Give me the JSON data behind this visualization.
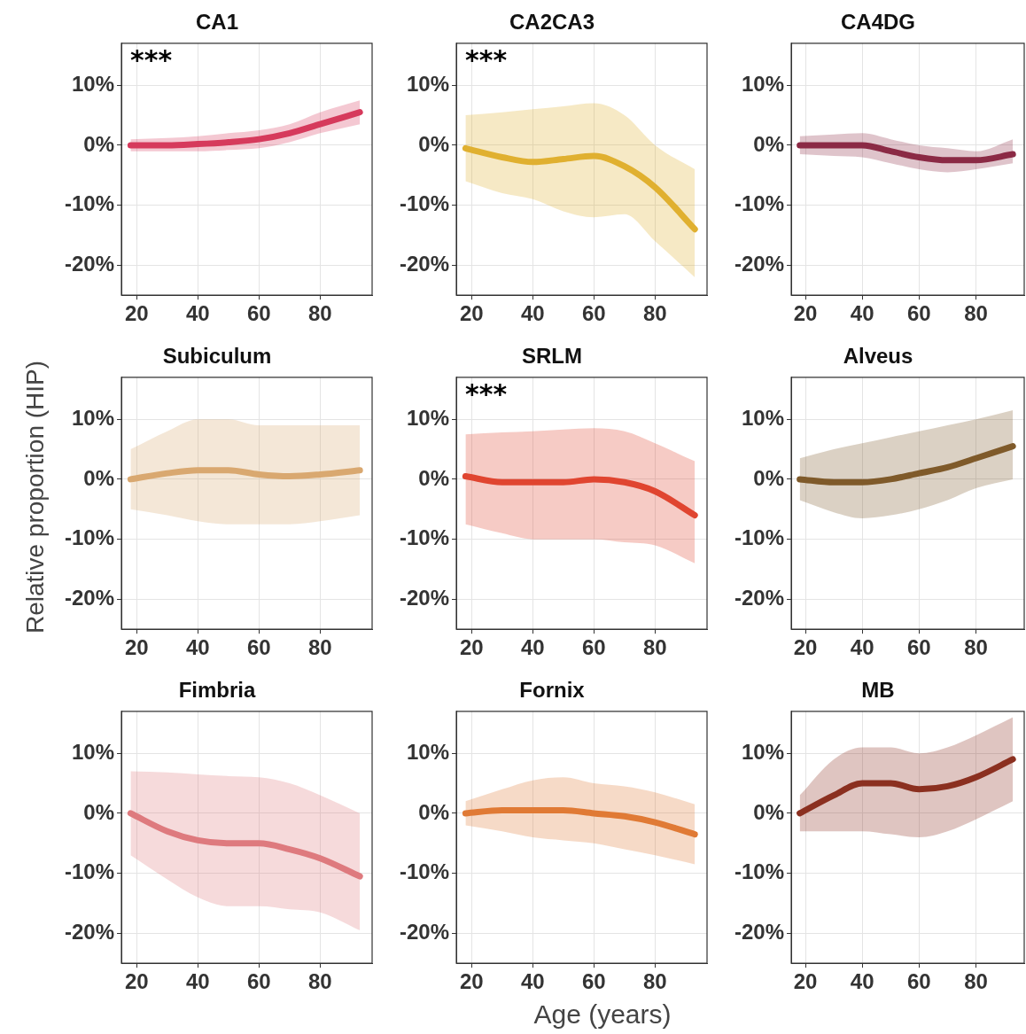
{
  "chart_data": [
    {
      "type": "line",
      "title": "CA1",
      "annotations": [
        "***"
      ],
      "x": [
        18,
        30,
        40,
        50,
        60,
        70,
        80,
        93
      ],
      "xlim": [
        15,
        97
      ],
      "xticks": [
        20,
        40,
        60,
        80
      ],
      "ylim": [
        -25,
        17
      ],
      "yticks": [
        {
          "value": 10,
          "label": "10%"
        },
        {
          "value": 0,
          "label": "0%"
        },
        {
          "value": -10,
          "label": "-10%"
        },
        {
          "value": -20,
          "label": "-20%"
        }
      ],
      "grid": true,
      "legend": false,
      "marker": "none",
      "line_style": "solid",
      "series": [
        {
          "color": "#d63a5c",
          "values": [
            0,
            0,
            0.2,
            0.5,
            1,
            2,
            3.5,
            5.5
          ],
          "lower": [
            -1,
            -1,
            -1,
            -0.8,
            -0.5,
            0.5,
            2,
            3.5
          ],
          "upper": [
            1,
            1.2,
            1.5,
            2,
            2.5,
            3.5,
            5.5,
            7.5
          ]
        }
      ]
    },
    {
      "type": "line",
      "title": "CA2CA3",
      "annotations": [
        "***"
      ],
      "x": [
        18,
        30,
        40,
        50,
        60,
        70,
        80,
        93
      ],
      "xlim": [
        15,
        97
      ],
      "xticks": [
        20,
        40,
        60,
        80
      ],
      "ylim": [
        -25,
        17
      ],
      "yticks": [
        {
          "value": 10,
          "label": "10%"
        },
        {
          "value": 0,
          "label": "0%"
        },
        {
          "value": -10,
          "label": "-10%"
        },
        {
          "value": -20,
          "label": "-20%"
        }
      ],
      "grid": true,
      "legend": false,
      "marker": "none",
      "line_style": "solid",
      "series": [
        {
          "color": "#e0b030",
          "values": [
            -0.5,
            -2,
            -2.8,
            -2.3,
            -1.8,
            -3.5,
            -7,
            -14
          ],
          "lower": [
            -6,
            -8,
            -9,
            -11,
            -12,
            -11.5,
            -16,
            -22
          ],
          "upper": [
            5,
            5.5,
            6,
            6.5,
            7,
            5,
            0,
            -4
          ]
        }
      ]
    },
    {
      "type": "line",
      "title": "CA4DG",
      "x": [
        18,
        30,
        40,
        50,
        60,
        70,
        80,
        93
      ],
      "xlim": [
        15,
        97
      ],
      "xticks": [
        20,
        40,
        60,
        80
      ],
      "ylim": [
        -25,
        17
      ],
      "yticks": [
        {
          "value": 10,
          "label": "10%"
        },
        {
          "value": 0,
          "label": "0%"
        },
        {
          "value": -10,
          "label": "-10%"
        },
        {
          "value": -20,
          "label": "-20%"
        }
      ],
      "grid": true,
      "legend": false,
      "marker": "none",
      "line_style": "solid",
      "series": [
        {
          "color": "#8b2a45",
          "values": [
            0,
            0,
            0,
            -1,
            -2,
            -2.5,
            -2.5,
            -1.5
          ],
          "lower": [
            -1.5,
            -1.8,
            -2,
            -3,
            -4,
            -4.5,
            -4,
            -3
          ],
          "upper": [
            1.5,
            1.8,
            2,
            1,
            0,
            -0.5,
            -1,
            1
          ]
        }
      ]
    },
    {
      "type": "line",
      "title": "Subiculum",
      "ylabel": "Relative proportion (HIP)",
      "x": [
        18,
        30,
        40,
        50,
        60,
        70,
        80,
        93
      ],
      "xlim": [
        15,
        97
      ],
      "xticks": [
        20,
        40,
        60,
        80
      ],
      "ylim": [
        -25,
        17
      ],
      "yticks": [
        {
          "value": 10,
          "label": "10%"
        },
        {
          "value": 0,
          "label": "0%"
        },
        {
          "value": -10,
          "label": "-10%"
        },
        {
          "value": -20,
          "label": "-20%"
        }
      ],
      "grid": true,
      "legend": false,
      "marker": "none",
      "line_style": "solid",
      "series": [
        {
          "color": "#d9a870",
          "values": [
            0,
            1,
            1.5,
            1.5,
            0.8,
            0.5,
            0.8,
            1.5
          ],
          "lower": [
            -5,
            -6,
            -7,
            -7.5,
            -7.5,
            -7.5,
            -7,
            -6
          ],
          "upper": [
            5,
            8,
            10,
            10,
            9,
            9,
            9,
            9
          ]
        }
      ]
    },
    {
      "type": "line",
      "title": "SRLM",
      "annotations": [
        "***"
      ],
      "x": [
        18,
        30,
        40,
        50,
        60,
        70,
        80,
        93
      ],
      "xlim": [
        15,
        97
      ],
      "xticks": [
        20,
        40,
        60,
        80
      ],
      "ylim": [
        -25,
        17
      ],
      "yticks": [
        {
          "value": 10,
          "label": "10%"
        },
        {
          "value": 0,
          "label": "0%"
        },
        {
          "value": -10,
          "label": "-10%"
        },
        {
          "value": -20,
          "label": "-20%"
        }
      ],
      "grid": true,
      "legend": false,
      "marker": "none",
      "line_style": "solid",
      "series": [
        {
          "color": "#e04530",
          "values": [
            0.5,
            -0.5,
            -0.5,
            -0.5,
            0,
            -0.5,
            -2,
            -6
          ],
          "lower": [
            -7.5,
            -9,
            -10,
            -10,
            -10,
            -10.5,
            -11,
            -14
          ],
          "upper": [
            7.5,
            7.8,
            8,
            8.3,
            8.5,
            8,
            6,
            3
          ]
        }
      ]
    },
    {
      "type": "line",
      "title": "Alveus",
      "x": [
        18,
        30,
        40,
        50,
        60,
        70,
        80,
        93
      ],
      "xlim": [
        15,
        97
      ],
      "xticks": [
        20,
        40,
        60,
        80
      ],
      "ylim": [
        -25,
        17
      ],
      "yticks": [
        {
          "value": 10,
          "label": "10%"
        },
        {
          "value": 0,
          "label": "0%"
        },
        {
          "value": -10,
          "label": "-10%"
        },
        {
          "value": -20,
          "label": "-20%"
        }
      ],
      "grid": true,
      "legend": false,
      "marker": "none",
      "line_style": "solid",
      "series": [
        {
          "color": "#7f5a2a",
          "values": [
            0,
            -0.5,
            -0.5,
            0,
            1,
            2,
            3.5,
            5.5
          ],
          "lower": [
            -3.5,
            -5.5,
            -6.5,
            -6,
            -5,
            -3.5,
            -1.5,
            0
          ],
          "upper": [
            3.5,
            5,
            6,
            7,
            8,
            9,
            10,
            11.5
          ]
        }
      ]
    },
    {
      "type": "line",
      "title": "Fimbria",
      "x": [
        18,
        30,
        40,
        50,
        60,
        70,
        80,
        93
      ],
      "xlim": [
        15,
        97
      ],
      "xticks": [
        20,
        40,
        60,
        80
      ],
      "ylim": [
        -25,
        17
      ],
      "yticks": [
        {
          "value": 10,
          "label": "10%"
        },
        {
          "value": 0,
          "label": "0%"
        },
        {
          "value": -10,
          "label": "-10%"
        },
        {
          "value": -20,
          "label": "-20%"
        }
      ],
      "grid": true,
      "legend": false,
      "marker": "none",
      "line_style": "solid",
      "series": [
        {
          "color": "#de7a7e",
          "values": [
            0,
            -3,
            -4.5,
            -5,
            -5,
            -6,
            -7.5,
            -10.5
          ],
          "lower": [
            -7,
            -11,
            -14,
            -15.5,
            -15.5,
            -16,
            -16.5,
            -19.5
          ],
          "upper": [
            7,
            6.8,
            6.5,
            6.2,
            6,
            5,
            3,
            0
          ]
        }
      ]
    },
    {
      "type": "line",
      "title": "Fornix",
      "xlabel": "Age (years)",
      "x": [
        18,
        30,
        40,
        50,
        60,
        70,
        80,
        93
      ],
      "xlim": [
        15,
        97
      ],
      "xticks": [
        20,
        40,
        60,
        80
      ],
      "ylim": [
        -25,
        17
      ],
      "yticks": [
        {
          "value": 10,
          "label": "10%"
        },
        {
          "value": 0,
          "label": "0%"
        },
        {
          "value": -10,
          "label": "-10%"
        },
        {
          "value": -20,
          "label": "-20%"
        }
      ],
      "grid": true,
      "legend": false,
      "marker": "none",
      "line_style": "solid",
      "series": [
        {
          "color": "#e07a35",
          "values": [
            0,
            0.5,
            0.5,
            0.5,
            0,
            -0.5,
            -1.5,
            -3.5
          ],
          "lower": [
            -2,
            -3,
            -4,
            -4.5,
            -5,
            -6,
            -7,
            -8.5
          ],
          "upper": [
            2,
            4,
            5.5,
            6,
            5,
            4.5,
            3.5,
            1.5
          ]
        }
      ]
    },
    {
      "type": "line",
      "title": "MB",
      "x": [
        18,
        30,
        40,
        50,
        60,
        70,
        80,
        93
      ],
      "xlim": [
        15,
        97
      ],
      "xticks": [
        20,
        40,
        60,
        80
      ],
      "ylim": [
        -25,
        17
      ],
      "yticks": [
        {
          "value": 10,
          "label": "10%"
        },
        {
          "value": 0,
          "label": "0%"
        },
        {
          "value": -10,
          "label": "-10%"
        },
        {
          "value": -20,
          "label": "-20%"
        }
      ],
      "grid": true,
      "legend": false,
      "marker": "none",
      "line_style": "solid",
      "series": [
        {
          "color": "#8b3020",
          "values": [
            0,
            3,
            5,
            5,
            4,
            4.5,
            6,
            9
          ],
          "lower": [
            -3,
            -3,
            -3,
            -3.5,
            -4,
            -3,
            -1,
            2
          ],
          "upper": [
            3,
            9,
            11,
            11,
            10,
            11,
            13,
            16
          ]
        }
      ]
    }
  ]
}
